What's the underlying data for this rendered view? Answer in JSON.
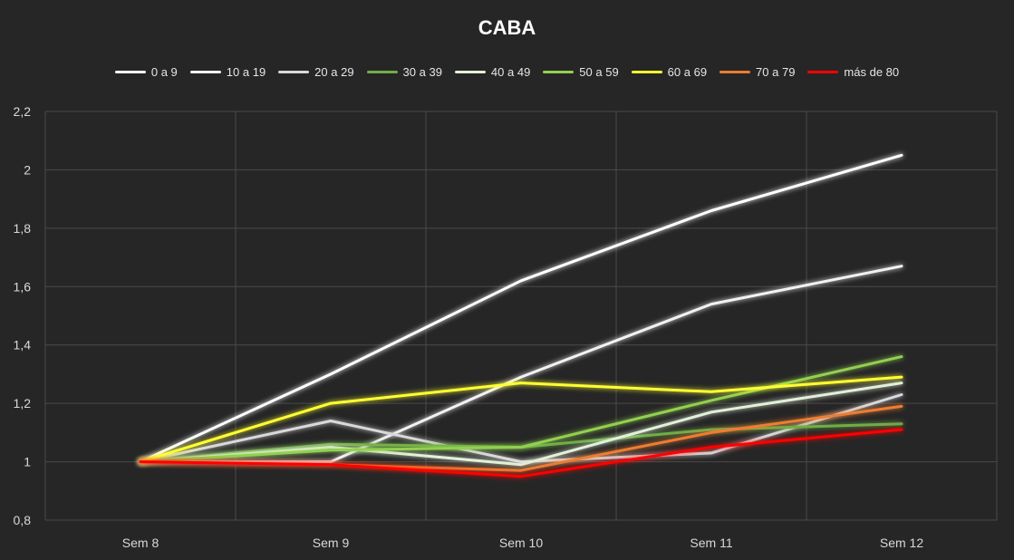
{
  "chart_data": {
    "type": "line",
    "title": "CABA",
    "xlabel": "",
    "ylabel": "",
    "categories": [
      "Sem 8",
      "Sem 9",
      "Sem 10",
      "Sem 11",
      "Sem 12"
    ],
    "ylim": [
      0.8,
      2.2
    ],
    "yticks": [
      0.8,
      1,
      1.2,
      1.4,
      1.6,
      1.8,
      2,
      2.2
    ],
    "ytick_labels": [
      "0,8",
      "1",
      "1,2",
      "1,4",
      "1,6",
      "1,8",
      "2",
      "2,2"
    ],
    "grid": true,
    "legend_position": "top",
    "background": "#262626",
    "series": [
      {
        "name": "0 a 9",
        "color": "#ffffff",
        "values": [
          1.0,
          1.3,
          1.62,
          1.86,
          2.05
        ]
      },
      {
        "name": "10 a 19",
        "color": "#f2f2f2",
        "values": [
          1.0,
          1.0,
          1.29,
          1.54,
          1.67
        ]
      },
      {
        "name": "20 a 29",
        "color": "#d9d9d9",
        "values": [
          1.0,
          1.14,
          1.0,
          1.03,
          1.23
        ]
      },
      {
        "name": "30 a 39",
        "color": "#70ad47",
        "values": [
          1.0,
          1.06,
          1.05,
          1.11,
          1.13
        ]
      },
      {
        "name": "40 a 49",
        "color": "#e2f0d9",
        "values": [
          1.0,
          1.05,
          0.99,
          1.17,
          1.27
        ]
      },
      {
        "name": "50 a 59",
        "color": "#92d050",
        "values": [
          1.0,
          1.04,
          1.05,
          1.21,
          1.36
        ]
      },
      {
        "name": "60 a 69",
        "color": "#ffff33",
        "values": [
          1.0,
          1.2,
          1.27,
          1.24,
          1.29
        ]
      },
      {
        "name": "70 a 79",
        "color": "#ed7d31",
        "values": [
          1.0,
          0.99,
          0.97,
          1.1,
          1.19
        ]
      },
      {
        "name": "más de 80",
        "color": "#ff0000",
        "values": [
          1.0,
          0.99,
          0.95,
          1.05,
          1.11
        ]
      }
    ]
  }
}
